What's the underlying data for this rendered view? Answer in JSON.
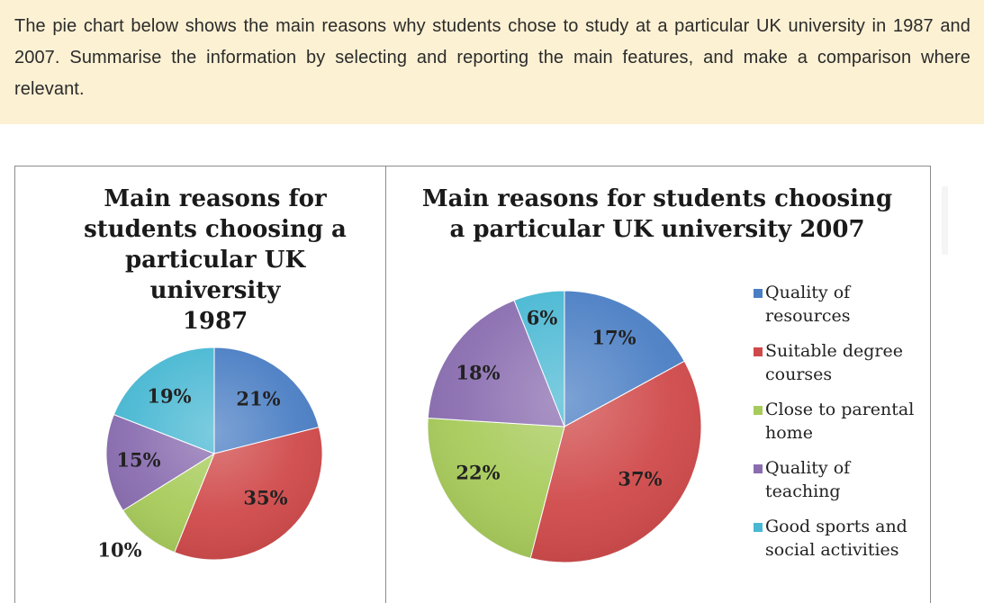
{
  "prompt": {
    "text": "The pie chart below shows the main reasons why students chose to study at a particular UK university in 1987 and 2007. Summarise the information by selecting and reporting the main features, and make a comparison where relevant."
  },
  "colors": {
    "prompt_background": "#fcf1d3",
    "quality_of_resources": "#4a7ec4",
    "suitable_degree_courses": "#d0494a",
    "close_to_parental_home": "#a7cb5a",
    "quality_of_teaching": "#8a6db0",
    "good_sports_and_social_activities": "#49b8d3"
  },
  "chart_data": [
    {
      "type": "pie",
      "title": "Main reasons for\nstudents choosing a\nparticular UK university\n1987",
      "categories": [
        "Quality of resources",
        "Suitable degree courses",
        "Close to parental home",
        "Quality of teaching",
        "Good sports and social activities"
      ],
      "values": [
        21,
        35,
        10,
        15,
        19
      ],
      "value_labels": [
        "21%",
        "35%",
        "10%",
        "15%",
        "19%"
      ]
    },
    {
      "type": "pie",
      "title": "Main reasons for students choosing\na particular UK university 2007",
      "categories": [
        "Quality of resources",
        "Suitable degree courses",
        "Close to parental home",
        "Quality of teaching",
        "Good sports and social activities"
      ],
      "values": [
        17,
        37,
        22,
        18,
        6
      ],
      "value_labels": [
        "17%",
        "37%",
        "22%",
        "18%",
        "6%"
      ]
    }
  ],
  "legend": {
    "items": [
      {
        "label": "Quality of\nresources",
        "color": "#4a7ec4"
      },
      {
        "label": "Suitable degree\ncourses",
        "color": "#d0494a"
      },
      {
        "label": "Close to parental\nhome",
        "color": "#a7cb5a"
      },
      {
        "label": "Quality of\nteaching",
        "color": "#8a6db0"
      },
      {
        "label": "Good sports and\nsocial activities",
        "color": "#49b8d3"
      }
    ]
  }
}
